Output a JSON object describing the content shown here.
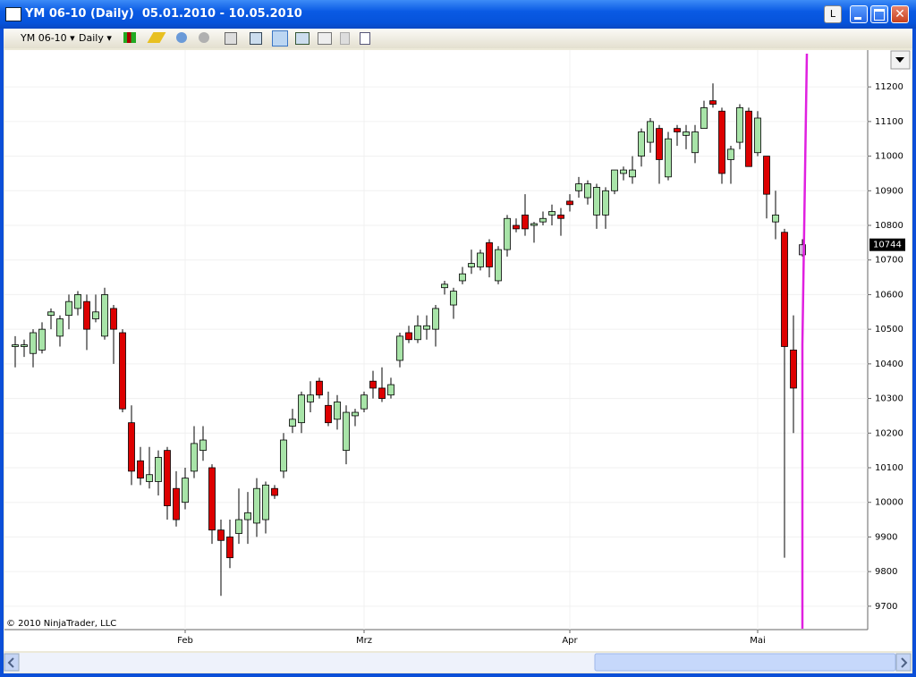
{
  "window": {
    "title": "YM 06-10 (Daily)  05.01.2010 - 10.05.2010",
    "button": "L"
  },
  "toolbar": {
    "instrument": "YM 06-10",
    "period": "Daily"
  },
  "copyright": "© 2010 NinjaTrader, LLC",
  "chart_data": {
    "type": "candlestick",
    "categories": [
      null,
      null,
      null,
      null,
      null,
      null,
      null,
      null,
      null,
      null,
      null,
      null,
      null,
      null,
      null,
      null,
      null,
      null,
      null,
      null,
      null,
      null,
      null,
      null,
      null,
      null,
      null,
      null,
      null,
      null,
      null,
      null,
      null,
      null,
      null,
      null,
      null,
      null,
      null,
      null,
      null,
      null,
      null,
      null,
      null,
      null,
      null,
      null,
      null,
      null,
      null,
      null,
      null,
      null,
      null,
      null,
      null,
      null,
      null,
      null,
      null,
      null,
      null,
      null,
      null,
      null,
      null,
      null,
      null,
      null,
      null,
      null,
      null,
      null,
      null,
      null,
      null,
      null,
      null,
      null,
      null,
      null,
      null,
      null,
      null,
      null,
      null,
      null,
      null
    ],
    "open": [
      10450,
      10450,
      10430,
      10440,
      10540,
      10480,
      10540,
      10560,
      10580,
      10530,
      10480,
      10560,
      10490,
      10230,
      10120,
      10060,
      10060,
      10150,
      10040,
      10000,
      10090,
      10150,
      10100,
      9920,
      9900,
      9910,
      9950,
      9940,
      9950,
      10040,
      10090,
      10220,
      10230,
      10290,
      10350,
      10280,
      10240,
      10150,
      10250,
      10270,
      10350,
      10330,
      10310,
      10410,
      10490,
      10470,
      10500,
      10500,
      10620,
      10570,
      10640,
      10680,
      10680,
      10750,
      10640,
      10730,
      10800,
      10830,
      10800,
      10810,
      10830,
      10830,
      10870,
      10900,
      10880,
      10830,
      10830,
      10900,
      10950,
      10940,
      11000,
      11040,
      11080,
      10940,
      11080,
      11060,
      11010,
      11080,
      11160,
      11130,
      10990,
      11040,
      11130,
      11010,
      11000,
      10810,
      10780,
      10440,
      10715
    ],
    "high": [
      10480,
      10470,
      10500,
      10520,
      10560,
      10540,
      10600,
      10610,
      10600,
      10600,
      10620,
      10570,
      10500,
      10280,
      10160,
      10160,
      10150,
      10160,
      10090,
      10100,
      10220,
      10220,
      10110,
      9950,
      9950,
      10040,
      10030,
      10070,
      10060,
      10050,
      10200,
      10270,
      10320,
      10350,
      10360,
      10320,
      10310,
      10280,
      10270,
      10320,
      10380,
      10390,
      10360,
      10490,
      10510,
      10540,
      10540,
      10570,
      10640,
      10620,
      10680,
      10730,
      10730,
      10760,
      10740,
      10830,
      10820,
      10890,
      10810,
      10840,
      10860,
      10850,
      10890,
      10940,
      10930,
      10920,
      10910,
      10960,
      10970,
      11000,
      11080,
      11110,
      11090,
      11070,
      11090,
      11090,
      11090,
      11160,
      11210,
      11140,
      11030,
      11150,
      11140,
      11130,
      11000,
      10900,
      10790,
      10540,
      10760
    ],
    "low": [
      10390,
      10420,
      10390,
      10430,
      10500,
      10450,
      10500,
      10540,
      10440,
      10520,
      10470,
      10400,
      10260,
      10050,
      10050,
      10040,
      10020,
      9950,
      9930,
      9980,
      10070,
      10120,
      9880,
      9730,
      9810,
      9880,
      9880,
      9900,
      9910,
      10010,
      10070,
      10200,
      10200,
      10260,
      10300,
      10220,
      10210,
      10110,
      10220,
      10260,
      10300,
      10290,
      10300,
      10390,
      10460,
      10460,
      10470,
      10450,
      10600,
      10530,
      10630,
      10660,
      10670,
      10650,
      10630,
      10710,
      10780,
      10770,
      10750,
      10800,
      10800,
      10770,
      10840,
      10880,
      10860,
      10790,
      10790,
      10890,
      10930,
      10920,
      10970,
      11010,
      10920,
      10930,
      11030,
      11020,
      10980,
      11080,
      11140,
      10920,
      10920,
      11020,
      10970,
      11000,
      10820,
      10760,
      9840,
      10200,
      10710
    ],
    "close": [
      10455,
      10455,
      10490,
      10500,
      10550,
      10530,
      10580,
      10600,
      10500,
      10550,
      10600,
      10500,
      10270,
      10090,
      10070,
      10080,
      10130,
      9990,
      9950,
      10070,
      10170,
      10180,
      9920,
      9890,
      9840,
      9950,
      9970,
      10040,
      10050,
      10020,
      10180,
      10240,
      10310,
      10310,
      10310,
      10230,
      10290,
      10260,
      10260,
      10310,
      10330,
      10300,
      10340,
      10480,
      10470,
      10510,
      10510,
      10560,
      10630,
      10610,
      10660,
      10690,
      10720,
      10680,
      10730,
      10820,
      10790,
      10790,
      10805,
      10820,
      10840,
      10820,
      10860,
      10920,
      10920,
      10910,
      10900,
      10960,
      10960,
      10960,
      11070,
      11100,
      10990,
      11050,
      11070,
      11070,
      11070,
      11140,
      11150,
      10950,
      11020,
      11140,
      10970,
      11110,
      10890,
      10830,
      10450,
      10330,
      10744
    ],
    "up_color": "#a8e4a8",
    "down_color": "#dd0000",
    "current_color": "#c9b4d6",
    "ylim": [
      9635,
      11296
    ],
    "yticks": [
      9700,
      9800,
      9900,
      10000,
      10100,
      10200,
      10300,
      10400,
      10500,
      10600,
      10700,
      10800,
      10900,
      11000,
      11100,
      11200
    ],
    "xticks": [
      {
        "value": 19,
        "label": "Feb"
      },
      {
        "value": 39,
        "label": "Mrz"
      },
      {
        "value": 62,
        "label": "Apr"
      },
      {
        "value": 83,
        "label": "Mai"
      }
    ],
    "grid": true
  }
}
